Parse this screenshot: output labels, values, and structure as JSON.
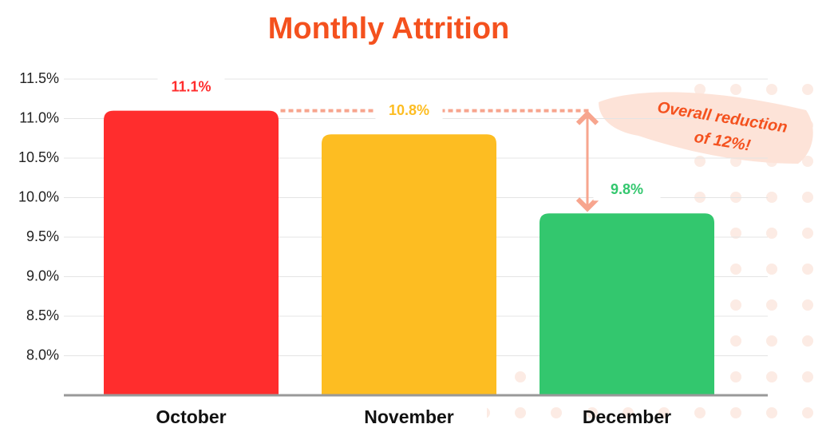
{
  "chart_data": {
    "type": "bar",
    "title": "Monthly Attrition",
    "categories": [
      "October",
      "November",
      "December"
    ],
    "values": [
      11.1,
      10.8,
      9.8
    ],
    "value_labels": [
      "11.1%",
      "10.8%",
      "9.8%"
    ],
    "colors": [
      "#ff2d2d",
      "#fdbd22",
      "#33c76e"
    ],
    "ylim": [
      7.5,
      11.5
    ],
    "yticks": [
      {
        "value": 8.0,
        "label": "8.0%"
      },
      {
        "value": 8.5,
        "label": "8.5%"
      },
      {
        "value": 9.0,
        "label": "9.0%"
      },
      {
        "value": 9.5,
        "label": "9.5%"
      },
      {
        "value": 10.0,
        "label": "10.0%"
      },
      {
        "value": 10.5,
        "label": "10.5%"
      },
      {
        "value": 11.0,
        "label": "11.0%"
      },
      {
        "value": 11.5,
        "label": "11.5%"
      }
    ],
    "grid": true,
    "annotation": [
      "Overall reduction",
      "of 12%!"
    ]
  }
}
